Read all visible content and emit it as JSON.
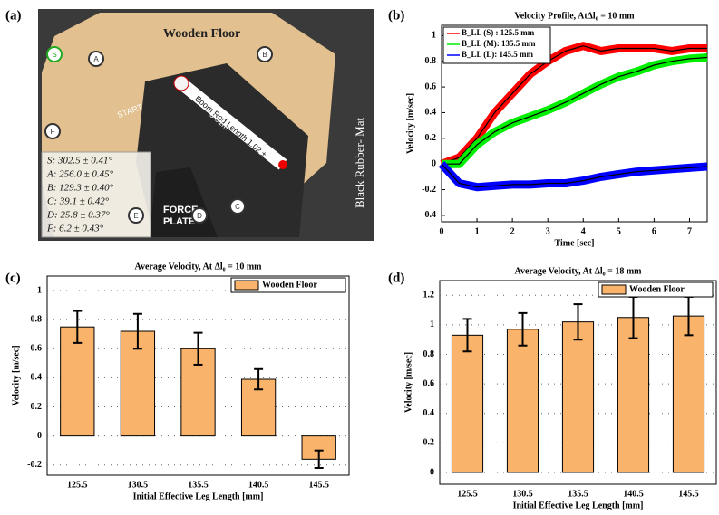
{
  "photo": {
    "panel_label": "(a)",
    "floor_label": "Wooden Floor",
    "mat_label": "Black Rubber- Mat",
    "start_label": "START",
    "plate_label": [
      "FORCE",
      "PLATE"
    ],
    "boom_label": [
      "Boom Rod Length 1.02 ±",
      "0.01m"
    ],
    "markers": [
      "A",
      "B",
      "C",
      "D",
      "E",
      "F",
      "S"
    ],
    "angles": [
      "S: 302.5 ± 0.41°",
      "A: 256.0 ± 0.45°",
      "B: 129.3 ± 0.40°",
      "C: 39.1 ± 0.42°",
      "D: 25.8 ± 0.37°",
      "F: 6.2 ± 0.43°"
    ]
  },
  "chart_data": [
    {
      "type": "line",
      "panel_label": "(b)",
      "title": "Velocity Profile, AtΔl₀ = 10 mm",
      "xlabel": "Time [sec]",
      "ylabel": "Velocity [m/sec]",
      "x": [
        0,
        0.5,
        1,
        1.5,
        2,
        2.5,
        3,
        3.5,
        4,
        4.5,
        5,
        5.5,
        6,
        6.5,
        7,
        7.5
      ],
      "series": [
        {
          "name": "B_LL (S) : 125.5 mm",
          "color": "#ff0000",
          "values": [
            0,
            0.05,
            0.2,
            0.4,
            0.55,
            0.7,
            0.8,
            0.88,
            0.92,
            0.88,
            0.9,
            0.9,
            0.9,
            0.88,
            0.9,
            0.9
          ]
        },
        {
          "name": "B_LL (M): 135.5 mm",
          "color": "#00ee00",
          "values": [
            0,
            0,
            0.15,
            0.25,
            0.32,
            0.37,
            0.42,
            0.48,
            0.55,
            0.62,
            0.68,
            0.72,
            0.77,
            0.8,
            0.82,
            0.83
          ]
        },
        {
          "name": "B_LL (L): 145.5 mm",
          "color": "#0000ff",
          "values": [
            0,
            -0.15,
            -0.18,
            -0.17,
            -0.16,
            -0.16,
            -0.15,
            -0.15,
            -0.13,
            -0.1,
            -0.08,
            -0.06,
            -0.05,
            -0.04,
            -0.03,
            -0.02
          ]
        }
      ],
      "xlim": [
        0,
        7.5
      ],
      "xticks": [
        0,
        1,
        2,
        3,
        4,
        5,
        6,
        7
      ],
      "ylim": [
        -0.45,
        1.08
      ],
      "yticks": [
        -0.4,
        -0.2,
        0,
        0.2,
        0.4,
        0.6,
        0.8,
        1
      ]
    },
    {
      "type": "bar",
      "panel_label": "(c)",
      "title": "Average Velocity,  At Δl₀ = 10 mm",
      "xlabel": "Initial Effective Leg Length [mm]",
      "ylabel": "Velocity [m/sec]",
      "categories": [
        "125.5",
        "130.5",
        "135.5",
        "140.5",
        "145.5"
      ],
      "values": [
        0.75,
        0.72,
        0.6,
        0.39,
        -0.16
      ],
      "errors": [
        0.11,
        0.12,
        0.11,
        0.07,
        0.06
      ],
      "legend": "Wooden Floor",
      "color": "#f9b36b",
      "ylim": [
        -0.27,
        1.1
      ],
      "yticks": [
        -0.2,
        0,
        0.2,
        0.4,
        0.6,
        0.8,
        1
      ],
      "grid": true
    },
    {
      "type": "bar",
      "panel_label": "(d)",
      "title": "Average Velocity, At Δl₀ = 18 mm",
      "xlabel": "Initial Effective Leg Length [mm]",
      "ylabel": "Velocity [m/sec]",
      "categories": [
        "125.5",
        "130.5",
        "135.5",
        "140.5",
        "145.5"
      ],
      "values": [
        0.93,
        0.97,
        1.02,
        1.05,
        1.06
      ],
      "errors": [
        0.11,
        0.11,
        0.12,
        0.14,
        0.13
      ],
      "legend": "Wooden Floor",
      "color": "#f9b36b",
      "ylim": [
        -0.08,
        1.3
      ],
      "yticks": [
        0,
        0.2,
        0.4,
        0.6,
        0.8,
        1,
        1.2
      ],
      "grid": true
    }
  ]
}
